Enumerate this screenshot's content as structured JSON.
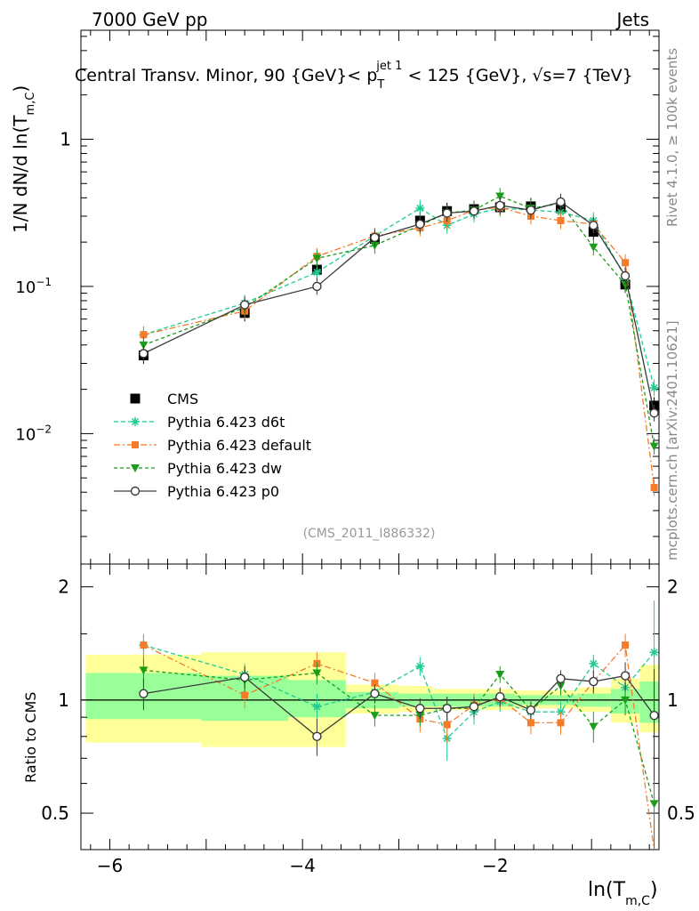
{
  "header": {
    "energy_label": "7000 GeV pp",
    "process_label": "Jets",
    "title_prefix": "Central Transv. Minor, 90 {GeV}< p",
    "title_sub": "T",
    "title_sup": "jet 1",
    "title_suffix": " < 125 {GeV}, √s=7 {TeV}",
    "side_label_top": "Rivet 4.1.0, ≥ 100k events",
    "side_label_bottom": "mcplots.cern.ch [arXiv:2401.10621]",
    "analysis_id": "(CMS_2011_I886332)"
  },
  "axes": {
    "main_ylabel_prefix": "1/N    dN/d ln(T",
    "main_ylabel_sub": "m,C",
    "main_ylabel_suffix": ")",
    "main_yticks": [
      {
        "v": 1,
        "base": "1",
        "exp": ""
      },
      {
        "v": 0.1,
        "base": "10",
        "exp": "−1"
      },
      {
        "v": 0.01,
        "base": "10",
        "exp": "−2"
      }
    ],
    "ratio_ylabel": "Ratio to CMS",
    "ratio_yticks": [
      {
        "v": 2,
        "label": "2"
      },
      {
        "v": 1,
        "label": "1"
      },
      {
        "v": 0.5,
        "label": "0.5"
      }
    ],
    "xticks": [
      {
        "v": -6,
        "label": "−6"
      },
      {
        "v": -4,
        "label": "−4"
      },
      {
        "v": -2,
        "label": "−2"
      }
    ],
    "xlabel_prefix": "ln(T",
    "xlabel_sub": "m,C",
    "xlabel_suffix": ")"
  },
  "legend": [
    {
      "label": "CMS",
      "series": "cms"
    },
    {
      "label": "Pythia 6.423 d6t",
      "series": "d6t"
    },
    {
      "label": "Pythia 6.423 default",
      "series": "default"
    },
    {
      "label": "Pythia 6.423 dw",
      "series": "dw"
    },
    {
      "label": "Pythia 6.423 p0",
      "series": "p0"
    }
  ],
  "colors": {
    "cms": "#000000",
    "d6t": "#1fcc8f",
    "default": "#f47b2a",
    "dw": "#1a9e1a",
    "p0": "#3a3a3a",
    "band_inner": "#99ff99",
    "band_outer": "#ffff99"
  },
  "chart_data": {
    "type": "line",
    "xlim": [
      -6.3,
      -0.3
    ],
    "main_ylim": [
      0.0013,
      5.5
    ],
    "main_yscale": "log",
    "ratio_ylim": [
      0.4,
      2.3
    ],
    "ratio_yscale": "log",
    "x": [
      -5.65,
      -4.6,
      -3.85,
      -3.25,
      -2.78,
      -2.5,
      -2.22,
      -1.95,
      -1.63,
      -1.32,
      -0.98,
      -0.65,
      -0.35
    ],
    "bin_edges": [
      -6.25,
      -5.05,
      -4.15,
      -3.55,
      -3.0,
      -2.65,
      -2.35,
      -2.05,
      -1.8,
      -1.5,
      -1.15,
      -0.8,
      -0.5,
      -0.3
    ],
    "band_stat_up": [
      1.18,
      1.16,
      1.13,
      1.05,
      1.04,
      1.04,
      1.04,
      1.04,
      1.03,
      1.03,
      1.04,
      1.07,
      1.12
    ],
    "band_stat_down": [
      0.89,
      0.88,
      0.9,
      0.95,
      0.96,
      0.96,
      0.96,
      0.96,
      0.97,
      0.97,
      0.96,
      0.92,
      0.87
    ],
    "band_total_up": [
      1.32,
      1.34,
      1.34,
      1.1,
      1.09,
      1.07,
      1.07,
      1.07,
      1.06,
      1.06,
      1.08,
      1.14,
      1.24
    ],
    "band_total_down": [
      0.77,
      0.75,
      0.75,
      0.92,
      0.93,
      0.94,
      0.94,
      0.94,
      0.95,
      0.95,
      0.93,
      0.87,
      0.82
    ],
    "series": [
      {
        "name": "CMS",
        "key": "cms",
        "values": [
          0.034,
          0.066,
          0.13,
          0.21,
          0.28,
          0.325,
          0.335,
          0.345,
          0.35,
          0.34,
          0.235,
          0.103,
          0.0155
        ]
      },
      {
        "name": "Pythia 6.423 d6t",
        "key": "d6t",
        "values": [
          0.047,
          0.077,
          0.125,
          0.22,
          0.34,
          0.26,
          0.31,
          0.34,
          0.33,
          0.32,
          0.28,
          0.115,
          0.0205
        ],
        "ratio": [
          1.4,
          1.17,
          0.96,
          1.05,
          1.23,
          0.79,
          0.93,
          0.99,
          0.93,
          0.93,
          1.25,
          1.08,
          1.34
        ],
        "ratio_err": [
          0.09,
          0.08,
          0.08,
          0.06,
          0.07,
          0.1,
          0.07,
          0.06,
          0.05,
          0.06,
          0.07,
          0.1,
          0.5
        ]
      },
      {
        "name": "Pythia 6.423 default",
        "key": "default",
        "values": [
          0.047,
          0.068,
          0.16,
          0.22,
          0.25,
          0.28,
          0.33,
          0.345,
          0.3,
          0.28,
          0.265,
          0.145,
          0.0043
        ],
        "ratio": [
          1.4,
          1.03,
          1.25,
          1.11,
          0.89,
          0.86,
          0.97,
          1.01,
          0.87,
          0.87,
          1.12,
          1.4,
          0.28
        ],
        "ratio_err": [
          0.1,
          0.08,
          0.09,
          0.07,
          0.07,
          0.09,
          0.07,
          0.06,
          0.06,
          0.06,
          0.07,
          0.1,
          0.2
        ]
      },
      {
        "name": "Pythia 6.423 dw",
        "key": "dw",
        "values": [
          0.04,
          0.072,
          0.155,
          0.19,
          0.26,
          0.315,
          0.33,
          0.41,
          0.34,
          0.365,
          0.185,
          0.103,
          0.0082
        ],
        "ratio": [
          1.2,
          1.13,
          1.18,
          0.91,
          0.91,
          0.95,
          0.95,
          1.17,
          0.94,
          1.09,
          0.85,
          1.0,
          0.53
        ],
        "ratio_err": [
          0.1,
          0.08,
          0.08,
          0.06,
          0.06,
          0.07,
          0.06,
          0.06,
          0.05,
          0.06,
          0.08,
          0.09,
          0.3
        ]
      },
      {
        "name": "Pythia 6.423 p0",
        "key": "p0",
        "values": [
          0.035,
          0.075,
          0.1,
          0.215,
          0.265,
          0.315,
          0.325,
          0.355,
          0.33,
          0.375,
          0.26,
          0.118,
          0.0138
        ],
        "ratio": [
          1.04,
          1.15,
          0.8,
          1.04,
          0.95,
          0.95,
          0.96,
          1.02,
          0.94,
          1.14,
          1.12,
          1.16,
          0.91
        ],
        "ratio_err": [
          0.1,
          0.08,
          0.09,
          0.06,
          0.06,
          0.07,
          0.06,
          0.06,
          0.05,
          0.06,
          0.08,
          0.1,
          0.3
        ]
      }
    ]
  }
}
